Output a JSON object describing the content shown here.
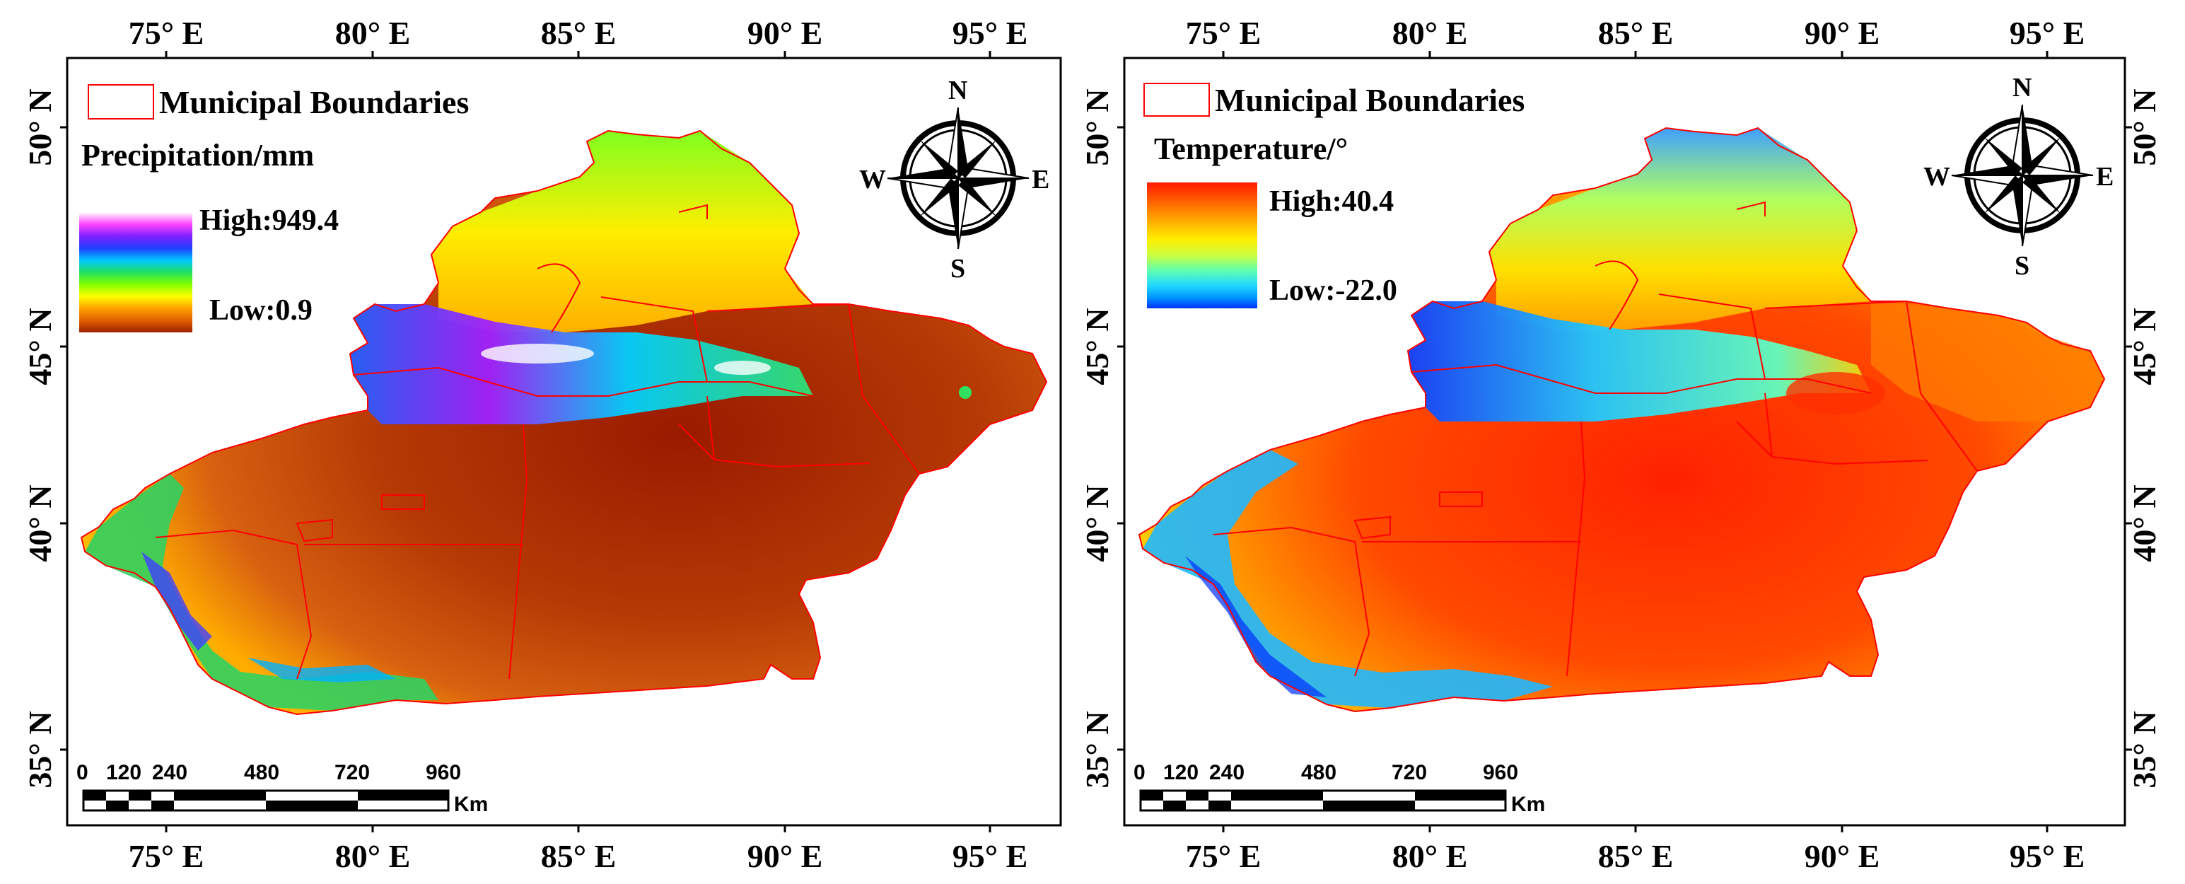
{
  "panels": [
    {
      "id": "precip",
      "top_ticks": [
        "75° E",
        "80° E",
        "85° E",
        "90° E",
        "95° E"
      ],
      "bottom_ticks": [
        "75° E",
        "80° E",
        "85° E",
        "90° E",
        "95° E"
      ],
      "lat_ticks": [
        "50° N",
        "45° N",
        "40° N",
        "35° N"
      ],
      "legend_boundary": "Municipal Boundaries",
      "variable_title": "Precipitation/mm",
      "high_label": "High:949.4",
      "low_label": "Low:0.9",
      "ramp_colors": [
        "#ffffff",
        "#ff44ff",
        "#8020ff",
        "#2040ff",
        "#00c8ff",
        "#20e060",
        "#80ff00",
        "#ffff00",
        "#ffa000",
        "#e06000",
        "#a02000"
      ],
      "scale_numbers": [
        "0",
        "120",
        "240",
        "480",
        "720",
        "960"
      ],
      "scale_unit": "Km",
      "compass": {
        "n": "N",
        "s": "S",
        "e": "E",
        "w": "W"
      }
    },
    {
      "id": "temp",
      "top_ticks": [
        "75° E",
        "80° E",
        "85° E",
        "90° E",
        "95° E"
      ],
      "bottom_ticks": [
        "75° E",
        "80° E",
        "85° E",
        "90° E",
        "95° E"
      ],
      "lat_ticks": [
        "50° N",
        "45° N",
        "40° N",
        "35° N"
      ],
      "legend_boundary": "Municipal Boundaries",
      "variable_title": "Temperature/°",
      "high_label": "High:40.4",
      "low_label": "Low:-22.0",
      "ramp_colors": [
        "#ff1a00",
        "#ff6000",
        "#ffaa00",
        "#ffee00",
        "#c8ff40",
        "#60ffb0",
        "#20d8ff",
        "#0090ff",
        "#0030ff"
      ],
      "scale_numbers": [
        "0",
        "120",
        "240",
        "480",
        "720",
        "960"
      ],
      "scale_unit": "Km",
      "compass": {
        "n": "N",
        "s": "S",
        "e": "E",
        "w": "W"
      }
    }
  ],
  "boundary_color": "#ff0000"
}
